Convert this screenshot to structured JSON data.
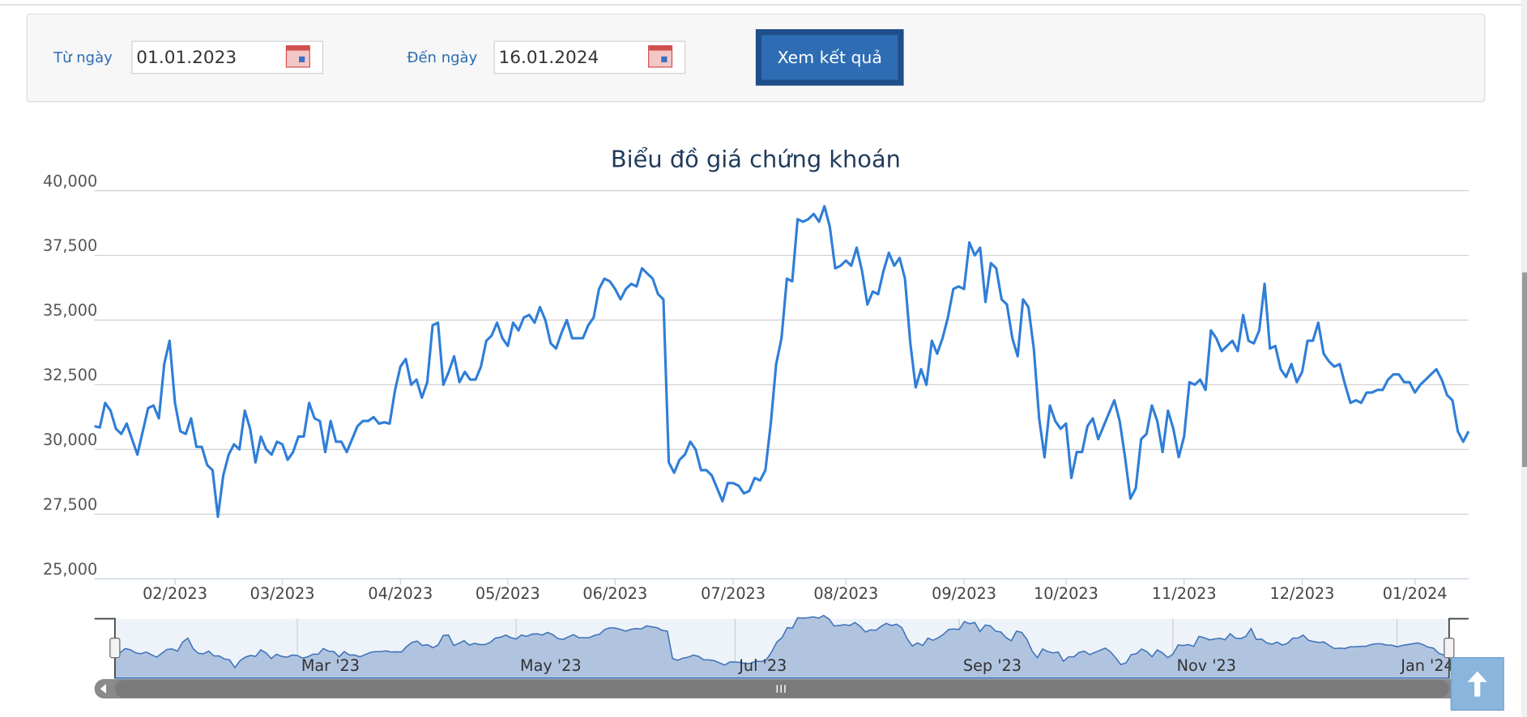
{
  "form": {
    "from_label": "Từ ngày",
    "from_value": "01.01.2023",
    "to_label": "Đến ngày",
    "to_value": "16.01.2024",
    "button": "Xem kết quả"
  },
  "chart_data": {
    "type": "line",
    "title": "Biểu đồ giá chứng khoán",
    "series": [
      {
        "color": "#2f7ed8",
        "values": [
          30900,
          30850,
          31800,
          31500,
          30800,
          30600,
          31000,
          30400,
          29800,
          30700,
          31600,
          31700,
          31200,
          33300,
          34200,
          31800,
          30700,
          30600,
          31200,
          30100,
          30100,
          29400,
          29200,
          27400,
          29000,
          29800,
          30200,
          30000,
          31500,
          30800,
          29500,
          30500,
          30000,
          29800,
          30300,
          30200,
          29600,
          29900,
          30500,
          30500,
          31800,
          31200,
          31100,
          29900,
          31100,
          30300,
          30300,
          29900,
          30400,
          30900,
          31100,
          31100,
          31250,
          31000,
          31050,
          31000,
          32300,
          33200,
          33500,
          32500,
          32700,
          32000,
          32600,
          34800,
          34900,
          32500,
          33000,
          33600,
          32600,
          33000,
          32700,
          32700,
          33200,
          34200,
          34400,
          34900,
          34300,
          34000,
          34900,
          34600,
          35100,
          35200,
          34900,
          35500,
          35000,
          34100,
          33900,
          34500,
          35000,
          34300,
          34300,
          34300,
          34800,
          35100,
          36200,
          36600,
          36500,
          36200,
          35800,
          36200,
          36400,
          36300,
          37000,
          36800,
          36600,
          36000,
          35800,
          29500,
          29100,
          29600,
          29800,
          30300,
          30000,
          29200,
          29200,
          29000,
          28500,
          28000,
          28700,
          28700,
          28600,
          28300,
          28400,
          28900,
          28800,
          29200,
          31000,
          33300,
          34300,
          36600,
          36500,
          38900,
          38800,
          38900,
          39100,
          38800,
          39400,
          38600,
          37000,
          37100,
          37300,
          37100,
          37800,
          36900,
          35600,
          36100,
          36000,
          36900,
          37600,
          37100,
          37400,
          36600,
          34100,
          32400,
          33100,
          32500,
          34200,
          33700,
          34300,
          35100,
          36200,
          36300,
          36200,
          38000,
          37500,
          37800,
          35700,
          37200,
          37000,
          35800,
          35600,
          34300,
          33600,
          35800,
          35500,
          33900,
          31200,
          29700,
          31700,
          31100,
          30800,
          31000,
          28900,
          29900,
          29900,
          30900,
          31200,
          30400,
          30900,
          31400,
          31900,
          31100,
          29700,
          28100,
          28500,
          30400,
          30600,
          31700,
          31100,
          29900,
          31500,
          30800,
          29700,
          30500,
          32600,
          32500,
          32700,
          32300,
          34600,
          34300,
          33800,
          34000,
          34200,
          33800,
          35200,
          34200,
          34100,
          34600,
          36400,
          33900,
          34000,
          33100,
          32800,
          33300,
          32600,
          33000,
          34200,
          34200,
          34900,
          33700,
          33400,
          33200,
          33300,
          32500,
          31800,
          31900,
          31800,
          32200,
          32200,
          32300,
          32300,
          32700,
          32900,
          32900,
          32600,
          32600,
          32200,
          32500,
          32700,
          32900,
          33100,
          32700,
          32100,
          31900,
          30700,
          30300,
          30700
        ]
      }
    ],
    "ylim": [
      25000,
      40000
    ],
    "yticks": [
      {
        "value": 25000,
        "label": "25,000"
      },
      {
        "value": 27500,
        "label": "27,500"
      },
      {
        "value": 30000,
        "label": "30,000"
      },
      {
        "value": 32500,
        "label": "32,500"
      },
      {
        "value": 35000,
        "label": "35,000"
      },
      {
        "value": 37500,
        "label": "37,500"
      },
      {
        "value": 40000,
        "label": "40,000"
      }
    ],
    "xlim": [
      0,
      256
    ],
    "xticks": [
      {
        "value": 15,
        "label": "02/2023"
      },
      {
        "value": 35,
        "label": "03/2023"
      },
      {
        "value": 57,
        "label": "04/2023"
      },
      {
        "value": 77,
        "label": "05/2023"
      },
      {
        "value": 97,
        "label": "06/2023"
      },
      {
        "value": 119,
        "label": "07/2023"
      },
      {
        "value": 140,
        "label": "08/2023"
      },
      {
        "value": 162,
        "label": "09/2023"
      },
      {
        "value": 181,
        "label": "10/2023"
      },
      {
        "value": 203,
        "label": "11/2023"
      },
      {
        "value": 225,
        "label": "12/2023"
      },
      {
        "value": 246,
        "label": "01/2024"
      }
    ],
    "grid": true,
    "navigator": {
      "ticks": [
        {
          "value": 35,
          "label": "Mar '23"
        },
        {
          "value": 77,
          "label": "May '23"
        },
        {
          "value": 119,
          "label": "Jul '23"
        },
        {
          "value": 162,
          "label": "Sep '23"
        },
        {
          "value": 203,
          "label": "Nov '23"
        },
        {
          "value": 246,
          "label": "Jan '24"
        }
      ]
    }
  }
}
